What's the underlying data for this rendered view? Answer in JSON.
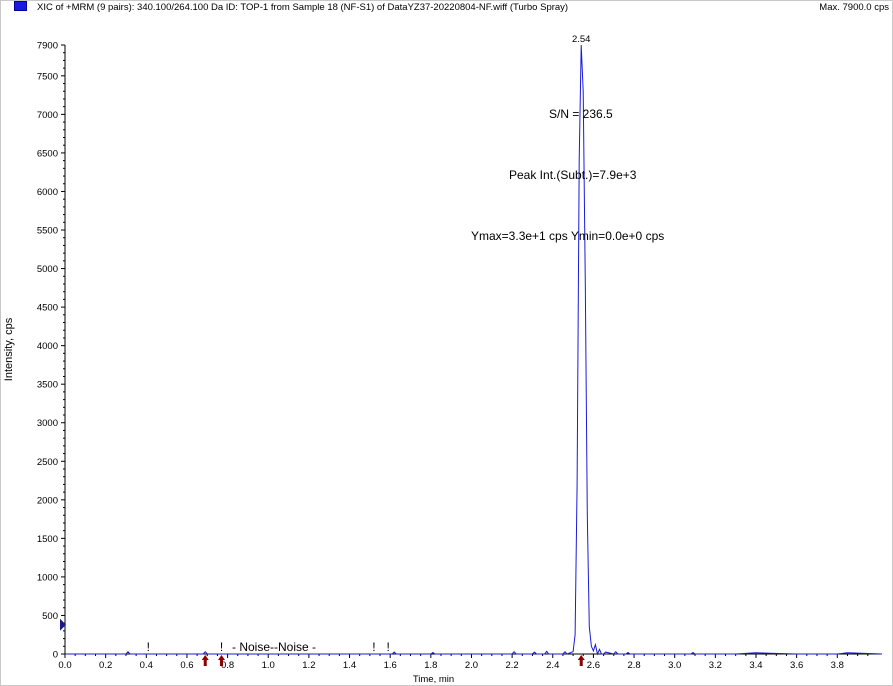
{
  "header": {
    "title": "XIC of +MRM (9 pairs): 340.100/264.100 Da ID: TOP-1 from Sample 18 (NF-S1) of DataYZ37-20220804-NF.wiff (Turbo Spray)",
    "max_label": "Max. 7900.0 cps"
  },
  "colors": {
    "trace": "#1a1adb",
    "axis": "#000000",
    "marker_arrow": "#8b0000",
    "marker_triangle": "#1a1a8c"
  },
  "chart_data": {
    "type": "line",
    "xlabel": "Time, min",
    "ylabel": "Intensity, cps",
    "xlim": [
      0.0,
      4.02
    ],
    "ylim": [
      0,
      7900
    ],
    "x_ticks": [
      0.0,
      0.2,
      0.4,
      0.6,
      0.8,
      1.0,
      1.2,
      1.4,
      1.6,
      1.8,
      2.0,
      2.2,
      2.4,
      2.6,
      2.8,
      3.0,
      3.2,
      3.4,
      3.6,
      3.8
    ],
    "x_tick_labels": [
      "0.0",
      "0.2",
      "0.4",
      "0.6",
      "0.8",
      "1.0",
      "1.2",
      "1.4",
      "1.6",
      "1.8",
      "2.0",
      "2.2",
      "2.4",
      "2.6",
      "2.8",
      "3.0",
      "3.2",
      "3.4",
      "3.6",
      "3.8"
    ],
    "y_ticks": [
      0,
      500,
      1000,
      1500,
      2000,
      2500,
      3000,
      3500,
      4000,
      4500,
      5000,
      5500,
      6000,
      6500,
      7000,
      7500,
      7900
    ],
    "y_tick_labels": [
      "0",
      "500",
      "1000",
      "1500",
      "2000",
      "2500",
      "3000",
      "3500",
      "4000",
      "4500",
      "5000",
      "5500",
      "6000",
      "6500",
      "7000",
      "7500",
      "7900"
    ],
    "series": [
      {
        "x": [
          0.0,
          0.3,
          0.31,
          0.32,
          0.5,
          0.68,
          0.69,
          0.7,
          0.9,
          1.1,
          1.3,
          1.5,
          1.61,
          1.62,
          1.63,
          1.8,
          1.81,
          1.82,
          2.0,
          2.2,
          2.21,
          2.22,
          2.3,
          2.31,
          2.32,
          2.36,
          2.37,
          2.38,
          2.45,
          2.46,
          2.47,
          2.5,
          2.51,
          2.52,
          2.53,
          2.54,
          2.55,
          2.56,
          2.57,
          2.58,
          2.59,
          2.6,
          2.61,
          2.62,
          2.63,
          2.64,
          2.65,
          2.66,
          2.7,
          2.71,
          2.72,
          2.76,
          2.77,
          2.78,
          2.9,
          3.08,
          3.09,
          3.1,
          3.3,
          3.4,
          3.6,
          3.8,
          3.85,
          4.02
        ],
        "y": [
          0,
          0,
          28,
          0,
          0,
          0,
          30,
          0,
          0,
          0,
          0,
          0,
          0,
          25,
          0,
          0,
          20,
          0,
          0,
          0,
          30,
          0,
          0,
          25,
          0,
          0,
          35,
          0,
          0,
          30,
          0,
          30,
          250,
          2200,
          6400,
          7900,
          7300,
          4800,
          1800,
          350,
          100,
          40,
          120,
          0,
          60,
          0,
          0,
          25,
          0,
          30,
          0,
          0,
          20,
          0,
          0,
          0,
          20,
          0,
          0,
          15,
          0,
          0,
          15,
          0
        ]
      }
    ],
    "annotations": {
      "peak_label": "2.54",
      "peak_x": 2.54,
      "peak_y": 7900,
      "sn": "S/N = 236.5",
      "peak_int": "Peak Int.(Subt.)=7.9e+3",
      "ymax_ymin": "Ymax=3.3e+1 cps  Ymin=0.0e+0 cps",
      "noise_label": "- Noise--Noise -",
      "noise_marks": "!",
      "noise_mark_x": [
        0.41,
        0.77,
        1.52,
        1.59
      ],
      "markers": [
        0.69,
        0.77,
        2.54
      ],
      "y_marker_value": 380
    }
  }
}
